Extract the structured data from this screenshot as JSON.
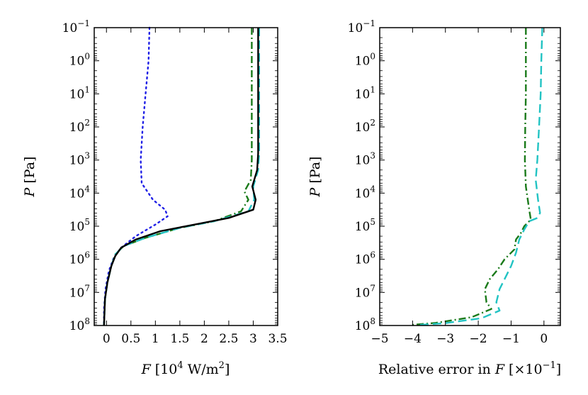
{
  "chart_data": [
    {
      "type": "line",
      "panel": "left",
      "xlabel": "F [10^4 W/m^2]",
      "xlabel_var": "F",
      "xlabel_unit": "[10",
      "xlabel_exp": "4",
      "xlabel_unit_rest": " W/m",
      "xlabel_exp2": "2",
      "xlabel_close": "]",
      "ylabel_var": "P",
      "ylabel_unit": "[Pa]",
      "xlim": [
        -0.25,
        3.5
      ],
      "ylim_log10": [
        -1,
        8
      ],
      "y_inverted": true,
      "y_scale": "log",
      "xticks": [
        "0",
        "0.5",
        "1",
        "1.5",
        "2",
        "2.5",
        "3",
        "3.5"
      ],
      "xtick_values": [
        0,
        0.5,
        1,
        1.5,
        2,
        2.5,
        3,
        3.5
      ],
      "yticks_exp": [
        "−1",
        "0",
        "1",
        "2",
        "3",
        "4",
        "5",
        "6",
        "7",
        "8"
      ],
      "ytick_base": "10",
      "series": [
        {
          "name": "dotted-blue",
          "color": "#1f1fe6",
          "style": "dotted",
          "points": [
            [
              0.88,
              -1
            ],
            [
              0.86,
              0
            ],
            [
              0.8,
              1
            ],
            [
              0.74,
              2
            ],
            [
              0.7,
              3
            ],
            [
              0.72,
              3.7
            ],
            [
              0.95,
              4.2
            ],
            [
              1.2,
              4.5
            ],
            [
              1.25,
              4.7
            ],
            [
              1.0,
              4.95
            ],
            [
              0.6,
              5.3
            ],
            [
              0.3,
              5.65
            ],
            [
              0.15,
              5.95
            ],
            [
              0.05,
              6.35
            ],
            [
              -0.02,
              6.9
            ],
            [
              -0.05,
              7.5
            ],
            [
              -0.05,
              8
            ]
          ]
        },
        {
          "name": "dashdot-green",
          "color": "#1a7a1a",
          "style": "dashdot",
          "points": [
            [
              2.97,
              -1
            ],
            [
              2.97,
              0
            ],
            [
              2.97,
              1
            ],
            [
              2.97,
              2
            ],
            [
              2.97,
              3
            ],
            [
              2.95,
              3.6
            ],
            [
              2.82,
              3.95
            ],
            [
              2.9,
              4.2
            ],
            [
              2.75,
              4.55
            ],
            [
              2.2,
              4.85
            ],
            [
              1.5,
              5.05
            ],
            [
              0.8,
              5.35
            ],
            [
              0.35,
              5.6
            ],
            [
              0.18,
              5.85
            ],
            [
              0.1,
              6.2
            ],
            [
              0.02,
              6.7
            ],
            [
              -0.03,
              7.2
            ],
            [
              -0.05,
              8
            ]
          ]
        },
        {
          "name": "dashed-cyan",
          "color": "#22c3c3",
          "style": "dashed",
          "points": [
            [
              3.12,
              -1
            ],
            [
              3.12,
              0
            ],
            [
              3.12,
              1
            ],
            [
              3.12,
              2
            ],
            [
              3.12,
              2.8
            ],
            [
              3.1,
              3.3
            ],
            [
              3.0,
              3.8
            ],
            [
              3.02,
              4.2
            ],
            [
              2.9,
              4.55
            ],
            [
              2.2,
              4.85
            ],
            [
              1.5,
              5.05
            ],
            [
              0.8,
              5.35
            ],
            [
              0.35,
              5.6
            ],
            [
              0.18,
              5.85
            ],
            [
              0.1,
              6.2
            ],
            [
              0.02,
              6.7
            ],
            [
              -0.03,
              7.2
            ],
            [
              -0.05,
              8
            ]
          ]
        },
        {
          "name": "solid-black",
          "color": "#000000",
          "style": "solid",
          "points": [
            [
              3.1,
              -1
            ],
            [
              3.1,
              0
            ],
            [
              3.1,
              1
            ],
            [
              3.1,
              2
            ],
            [
              3.1,
              2.8
            ],
            [
              3.08,
              3.3
            ],
            [
              2.98,
              3.8
            ],
            [
              3.05,
              4.2
            ],
            [
              3.0,
              4.5
            ],
            [
              2.5,
              4.75
            ],
            [
              1.8,
              4.95
            ],
            [
              1.1,
              5.15
            ],
            [
              0.6,
              5.4
            ],
            [
              0.3,
              5.65
            ],
            [
              0.18,
              5.9
            ],
            [
              0.1,
              6.2
            ],
            [
              0.02,
              6.7
            ],
            [
              -0.03,
              7.2
            ],
            [
              -0.05,
              8
            ]
          ]
        }
      ]
    },
    {
      "type": "line",
      "panel": "right",
      "xlabel_text": "Relative error in ",
      "xlabel_var": "F",
      "xlabel_unit": " [×10",
      "xlabel_exp": "−1",
      "xlabel_close": "]",
      "ylabel_var": "P",
      "ylabel_unit": "[Pa]",
      "xlim": [
        -5,
        0.5
      ],
      "ylim_log10": [
        -1,
        8
      ],
      "y_inverted": true,
      "y_scale": "log",
      "xticks": [
        "−5",
        "−4",
        "−3",
        "−2",
        "−1",
        "0"
      ],
      "xtick_values": [
        -5,
        -4,
        -3,
        -2,
        -1,
        0
      ],
      "yticks_exp": [
        "−1",
        "0",
        "1",
        "2",
        "3",
        "4",
        "5",
        "6",
        "7",
        "8"
      ],
      "ytick_base": "10",
      "series": [
        {
          "name": "dashdot-green",
          "color": "#1a7a1a",
          "style": "dashdot",
          "points": [
            [
              -0.55,
              -1
            ],
            [
              -0.55,
              0
            ],
            [
              -0.55,
              1
            ],
            [
              -0.57,
              2
            ],
            [
              -0.58,
              3
            ],
            [
              -0.55,
              3.8
            ],
            [
              -0.45,
              4.5
            ],
            [
              -0.4,
              4.8
            ],
            [
              -0.6,
              5.0
            ],
            [
              -0.7,
              5.2
            ],
            [
              -0.85,
              5.4
            ],
            [
              -0.9,
              5.7
            ],
            [
              -1.2,
              6.0
            ],
            [
              -1.4,
              6.3
            ],
            [
              -1.65,
              6.6
            ],
            [
              -1.8,
              6.9
            ],
            [
              -1.75,
              7.3
            ],
            [
              -1.6,
              7.5
            ],
            [
              -2.2,
              7.75
            ],
            [
              -3.3,
              7.92
            ],
            [
              -4.0,
              7.98
            ]
          ]
        },
        {
          "name": "dashed-cyan",
          "color": "#22c3c3",
          "style": "dashed",
          "points": [
            [
              -0.05,
              -1
            ],
            [
              -0.08,
              0
            ],
            [
              -0.1,
              1
            ],
            [
              -0.15,
              2
            ],
            [
              -0.2,
              3
            ],
            [
              -0.25,
              3.6
            ],
            [
              -0.18,
              4.2
            ],
            [
              -0.12,
              4.6
            ],
            [
              -0.2,
              4.75
            ],
            [
              -0.45,
              4.85
            ],
            [
              -0.6,
              5.1
            ],
            [
              -0.75,
              5.4
            ],
            [
              -0.85,
              5.8
            ],
            [
              -1.0,
              6.2
            ],
            [
              -1.2,
              6.6
            ],
            [
              -1.35,
              6.9
            ],
            [
              -1.45,
              7.3
            ],
            [
              -1.35,
              7.55
            ],
            [
              -1.9,
              7.78
            ],
            [
              -3.0,
              7.93
            ],
            [
              -3.9,
              7.99
            ]
          ]
        }
      ]
    }
  ]
}
